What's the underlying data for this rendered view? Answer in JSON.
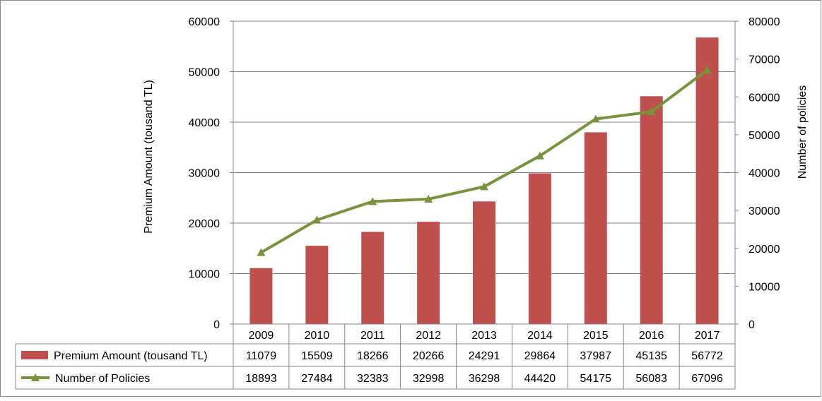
{
  "chart_data": {
    "type": "bar",
    "categories": [
      "2009",
      "2010",
      "2011",
      "2012",
      "2013",
      "2014",
      "2015",
      "2016",
      "2017"
    ],
    "series": [
      {
        "name": "Premium Amount (tousand TL)",
        "type": "bar",
        "axis": "left",
        "color": "#c0504d",
        "values": [
          11079,
          15509,
          18266,
          20266,
          24291,
          29864,
          37987,
          45135,
          56772
        ]
      },
      {
        "name": "Number of Policies",
        "type": "line",
        "marker": "triangle",
        "axis": "right",
        "color": "#77933c",
        "values": [
          18893,
          27484,
          32383,
          32998,
          36298,
          44420,
          54175,
          56083,
          67096
        ]
      }
    ],
    "ylabel": "Premium Amount (tousand TL)",
    "y2label": "Number of policies",
    "ylim": [
      0,
      60000
    ],
    "y2lim": [
      0,
      80000
    ],
    "yticks": [
      "0",
      "10000",
      "20000",
      "30000",
      "40000",
      "50000",
      "60000"
    ],
    "y2ticks": [
      "0",
      "10000",
      "20000",
      "30000",
      "40000",
      "50000",
      "60000",
      "70000",
      "80000"
    ],
    "grid": true,
    "legend": "data-table-below",
    "data_table": true
  }
}
